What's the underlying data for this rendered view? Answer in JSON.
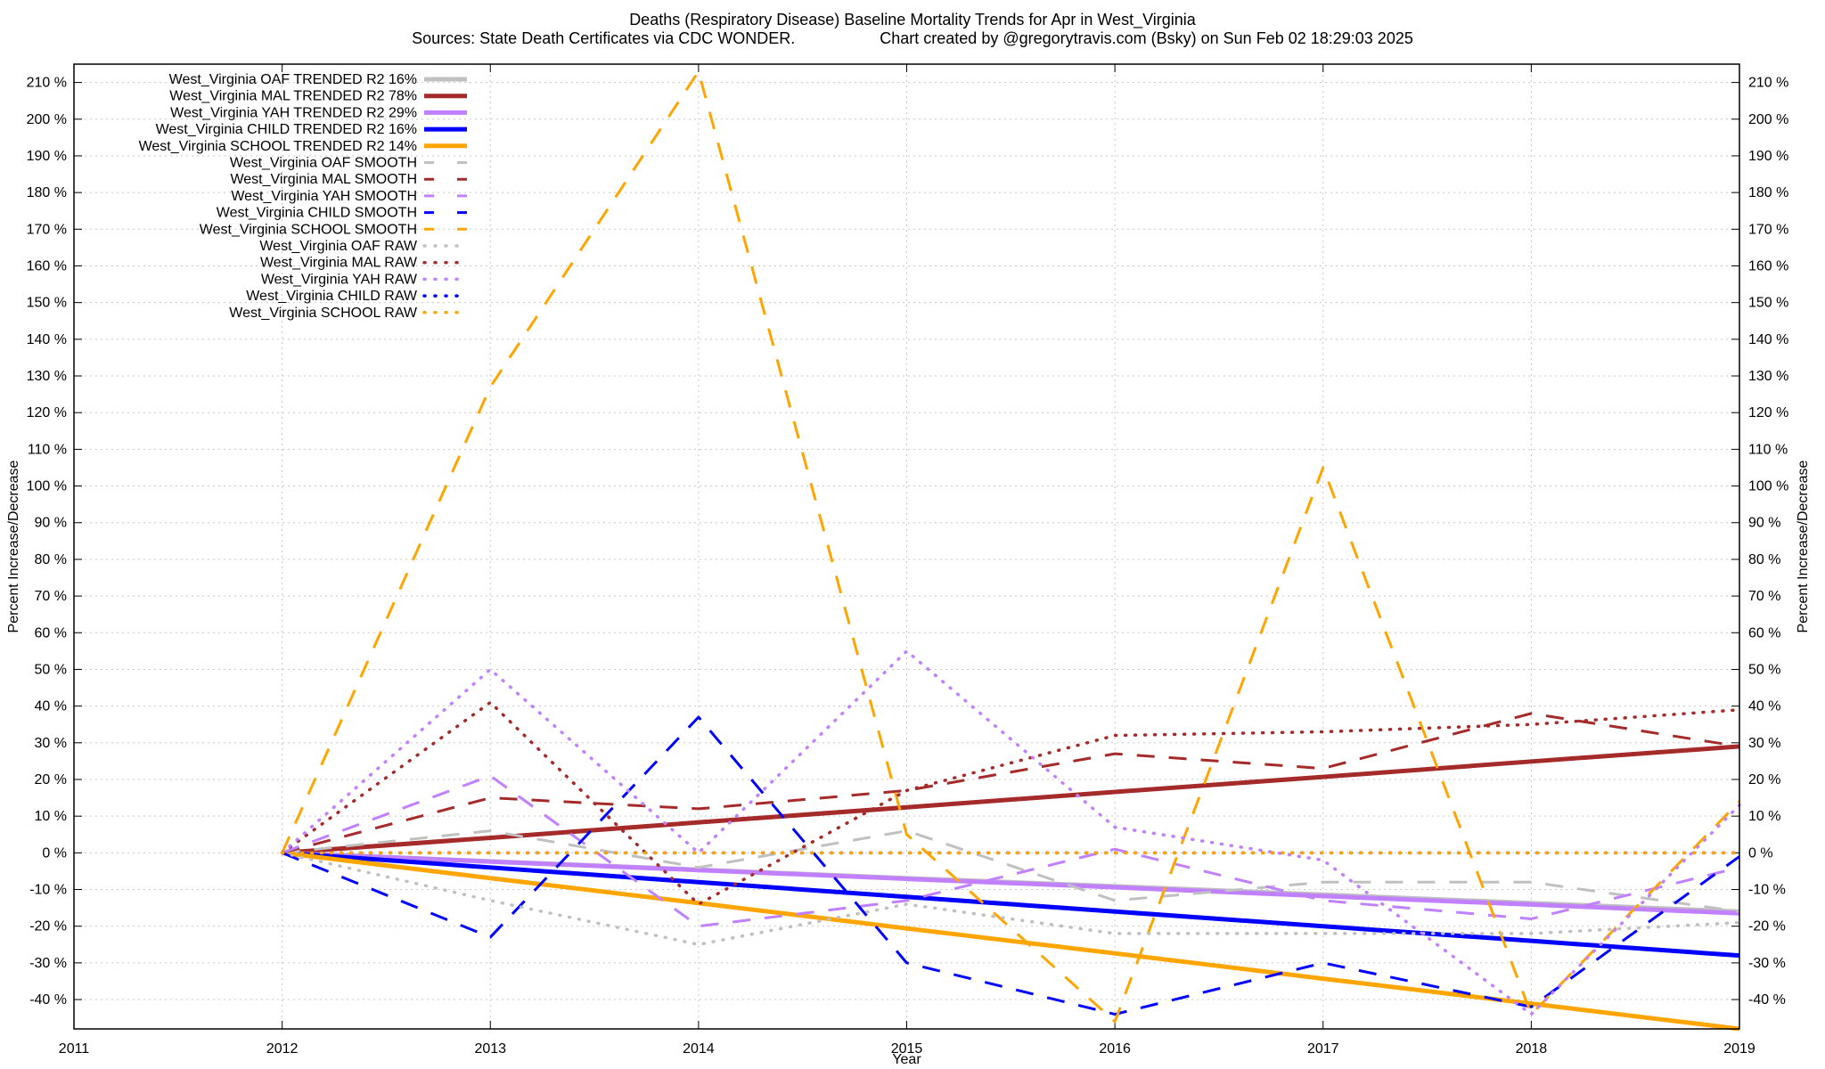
{
  "chart_data": {
    "type": "line",
    "title": "Deaths (Respiratory Disease)  Baseline Mortality Trends for Apr in West_Virginia",
    "subtitle_left": "Sources: State Death Certificates via CDC WONDER.",
    "subtitle_right": "Chart created by @gregorytravis.com (Bsky) on Sun Feb 02 18:29:03 2025",
    "xlabel": "Year",
    "ylabel": "Percent Increase/Decrease",
    "y2label": "Percent Increase/Decrease",
    "xlim": [
      2011,
      2019
    ],
    "ylim": [
      -48,
      215
    ],
    "xticks": [
      2011,
      2012,
      2013,
      2014,
      2015,
      2016,
      2017,
      2018,
      2019
    ],
    "yticks": [
      -40,
      -30,
      -20,
      -10,
      0,
      10,
      20,
      30,
      40,
      50,
      60,
      70,
      80,
      90,
      100,
      110,
      120,
      130,
      140,
      150,
      160,
      170,
      180,
      190,
      200,
      210
    ],
    "ytick_suffix": " %",
    "grid": true,
    "legend_position": "top-left",
    "x": [
      2012,
      2013,
      2014,
      2015,
      2016,
      2017,
      2018,
      2019
    ],
    "series": [
      {
        "name": "West_Virginia OAF TRENDED R2  16%",
        "style": "solid",
        "color": "#c0c0c0",
        "values": [
          0,
          -2.3,
          -4.6,
          -6.9,
          -9.1,
          -11.4,
          -13.7,
          -16
        ]
      },
      {
        "name": "West_Virginia MAL TRENDED R2  78%",
        "style": "solid",
        "color": "#a52a2a",
        "values": [
          0,
          4.1,
          8.3,
          12.4,
          16.6,
          20.7,
          24.9,
          29
        ]
      },
      {
        "name": "West_Virginia YAH TRENDED R2  29%",
        "style": "solid",
        "color": "#c080ff",
        "values": [
          0,
          -2.4,
          -4.7,
          -7.1,
          -9.4,
          -11.8,
          -14.1,
          -16.5
        ]
      },
      {
        "name": "West_Virginia CHILD TRENDED R2  16%",
        "style": "solid",
        "color": "#0000ff",
        "values": [
          0,
          -4,
          -8,
          -12,
          -16,
          -20,
          -24,
          -28
        ]
      },
      {
        "name": "West_Virginia SCHOOL TRENDED R2  14%",
        "style": "solid",
        "color": "#ffa500",
        "values": [
          0,
          -6.9,
          -13.7,
          -20.6,
          -27.4,
          -34.3,
          -41.1,
          -48
        ]
      },
      {
        "name": "West_Virginia OAF SMOOTH",
        "style": "dashed",
        "color": "#c0c0c0",
        "values": [
          0,
          6,
          -4,
          6,
          -13,
          -8,
          -8,
          -16
        ]
      },
      {
        "name": "West_Virginia MAL SMOOTH",
        "style": "dashed",
        "color": "#a52a2a",
        "values": [
          0,
          15,
          12,
          17,
          27,
          23,
          38,
          29
        ]
      },
      {
        "name": "West_Virginia YAH SMOOTH",
        "style": "dashed",
        "color": "#c080ff",
        "values": [
          0,
          21,
          -20,
          -13,
          1,
          -13,
          -18,
          -4
        ]
      },
      {
        "name": "West_Virginia CHILD SMOOTH",
        "style": "dashed",
        "color": "#0000ff",
        "values": [
          0,
          -23,
          37,
          -30,
          -44,
          -30,
          -42,
          -1
        ]
      },
      {
        "name": "West_Virginia SCHOOL SMOOTH",
        "style": "dashed",
        "color": "#ffa500",
        "values": [
          0,
          127,
          213,
          5,
          -46,
          105,
          -44,
          14
        ]
      },
      {
        "name": "West_Virginia OAF RAW",
        "style": "dotted",
        "color": "#c0c0c0",
        "values": [
          0,
          -13,
          -25,
          -14,
          -22,
          -22,
          -22,
          -19
        ]
      },
      {
        "name": "West_Virginia MAL RAW",
        "style": "dotted",
        "color": "#a52a2a",
        "values": [
          0,
          41,
          -14,
          17,
          32,
          33,
          35,
          39
        ]
      },
      {
        "name": "West_Virginia YAH RAW",
        "style": "dotted",
        "color": "#c080ff",
        "values": [
          0,
          50,
          0,
          55,
          7,
          -2,
          -44,
          13
        ]
      },
      {
        "name": "West_Virginia CHILD RAW",
        "style": "dotted",
        "color": "#0000ff",
        "values": [
          0,
          0,
          0,
          0,
          0,
          0,
          0,
          0
        ]
      },
      {
        "name": "West_Virginia SCHOOL RAW",
        "style": "dotted",
        "color": "#ffa500",
        "values": [
          0,
          0,
          0,
          0,
          0,
          0,
          0,
          0
        ]
      }
    ]
  }
}
